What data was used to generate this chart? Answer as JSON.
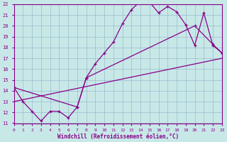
{
  "xlabel": "Windchill (Refroidissement éolien,°C)",
  "bg_color": "#c8e8e8",
  "line_color": "#880088",
  "grid_color": "#99bbcc",
  "xmin": 0,
  "xmax": 23,
  "ymin": 11,
  "ymax": 22,
  "line1_x": [
    0,
    1,
    2,
    3,
    4,
    5,
    6,
    7,
    8,
    9,
    10,
    11,
    12,
    13,
    14,
    15,
    16,
    17,
    18,
    19,
    20,
    21,
    22,
    23
  ],
  "line1_y": [
    14.3,
    13.0,
    12.1,
    11.2,
    12.1,
    12.1,
    11.5,
    12.5,
    15.2,
    16.5,
    17.5,
    18.5,
    20.2,
    21.5,
    22.3,
    22.2,
    21.2,
    21.8,
    21.3,
    20.1,
    18.2,
    21.2,
    18.2,
    17.5
  ],
  "line2_x": [
    0,
    7,
    8,
    20,
    22,
    23
  ],
  "line2_y": [
    14.3,
    12.5,
    15.2,
    20.0,
    18.3,
    17.5
  ],
  "line3_x": [
    0,
    23
  ],
  "line3_y": [
    13.0,
    17.0
  ]
}
